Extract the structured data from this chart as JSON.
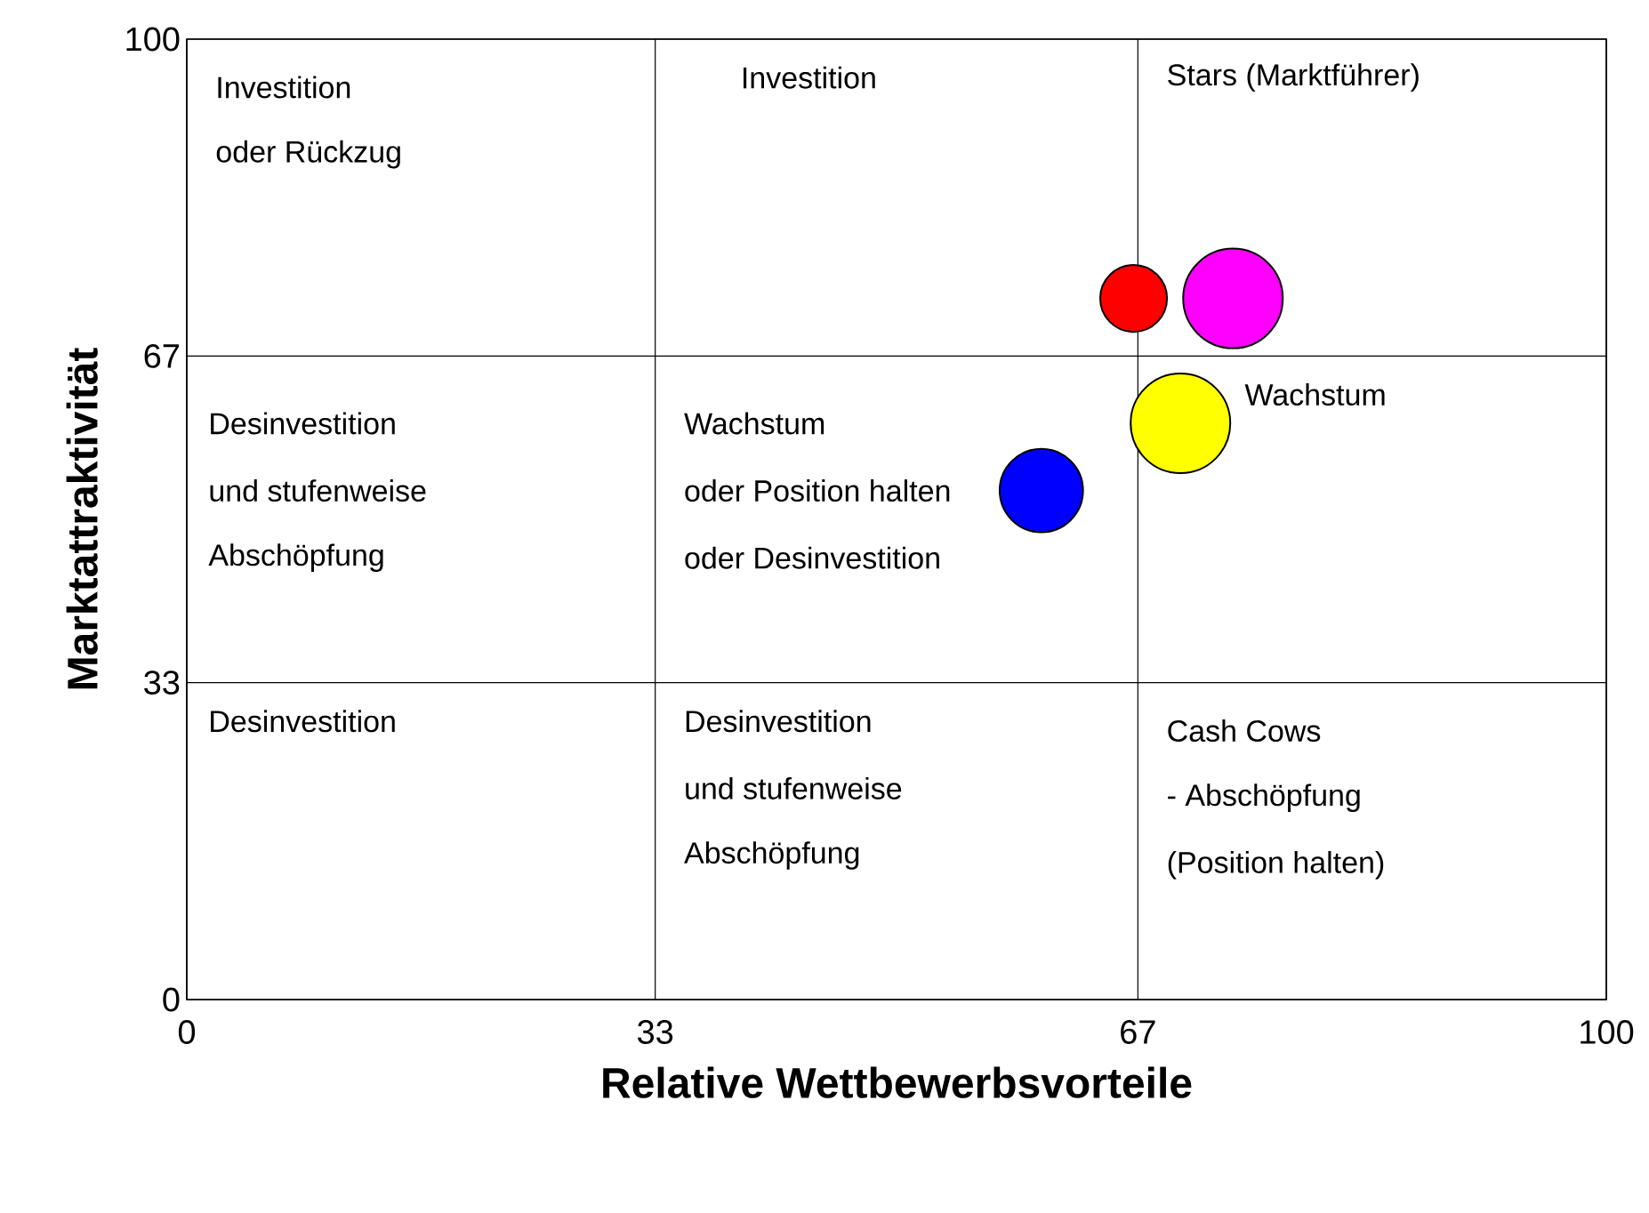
{
  "chart_data": {
    "type": "bubble",
    "xlabel": "Relative Wettbewerbsvorteile",
    "ylabel": "Marktattraktivität",
    "x": [
      66.7,
      73.7,
      70.0,
      60.2
    ],
    "values": [
      73,
      73,
      60,
      53
    ],
    "sizes": [
      0.45,
      1,
      1,
      0.7
    ],
    "colors": [
      "#ff0000",
      "#ff00ff",
      "#ffff00",
      "#0000ff"
    ],
    "xlim": [
      0,
      100
    ],
    "ylim": [
      0,
      100
    ],
    "xticks": [
      0,
      33,
      67,
      100
    ],
    "yticks": [
      0,
      33,
      67,
      100
    ],
    "grid": true,
    "annotations": [
      "Investition",
      "oder Rückzug",
      "Investition",
      "Stars (Marktführer)",
      "Desinvestition",
      "und stufenweise",
      "Abschöpfung",
      "Wachstum",
      "oder Position halten",
      "oder Desinvestition",
      "Wachstum",
      "Desinvestition",
      "Desinvestition",
      "und stufenweise",
      "Abschöpfung",
      "Cash Cows",
      "- Abschöpfung",
      "(Position halten)"
    ]
  }
}
